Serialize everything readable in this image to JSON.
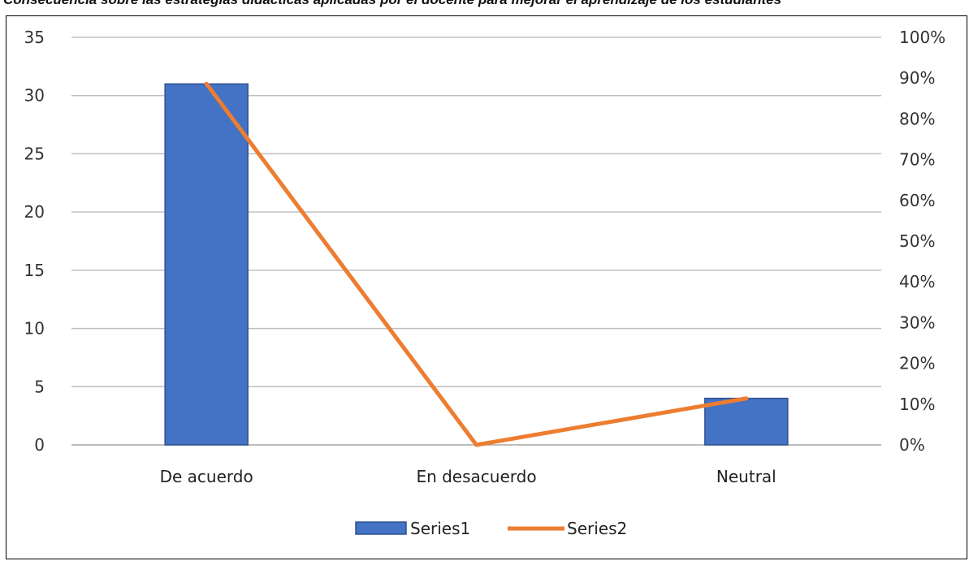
{
  "caption": "Consecuencia sobre las estrategias didácticas aplicadas por el docente para mejorar el aprendizaje de los estudiantes",
  "colors": {
    "bar": "#4472c4",
    "bar_border": "#2f528f",
    "line": "#ed7d31",
    "grid": "#bfbfbf"
  },
  "chart_data": {
    "type": "bar",
    "categories": [
      "De acuerdo",
      "En desacuerdo",
      "Neutral"
    ],
    "series": [
      {
        "name": "Series1",
        "type": "bar",
        "axis": "left",
        "values": [
          31,
          0,
          4
        ]
      },
      {
        "name": "Series2",
        "type": "line",
        "axis": "right",
        "values": [
          0.886,
          0.0,
          0.114
        ]
      }
    ],
    "ylim": [
      0,
      35
    ],
    "yticks": [
      0,
      5,
      10,
      15,
      20,
      25,
      30,
      35
    ],
    "y2lim": [
      0,
      1
    ],
    "y2ticks": [
      "0%",
      "10%",
      "20%",
      "30%",
      "40%",
      "50%",
      "60%",
      "70%",
      "80%",
      "90%",
      "100%"
    ],
    "title": "",
    "xlabel": "",
    "ylabel": "",
    "grid": true,
    "legend": "bottom"
  }
}
